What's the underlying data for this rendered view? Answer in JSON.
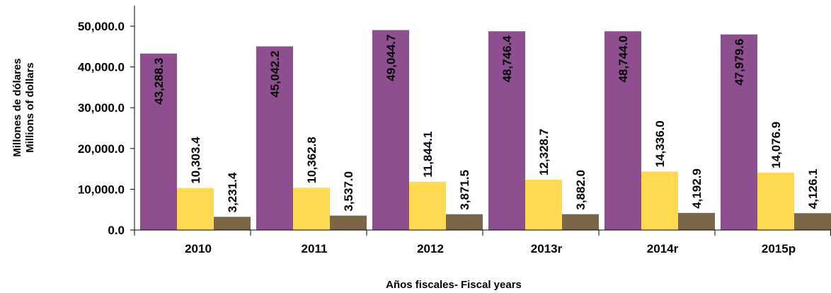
{
  "chart_data": {
    "type": "bar",
    "ylabel": [
      "Millones de dólares",
      "Millions of dollars"
    ],
    "xlabel": "Años fiscales- Fiscal years",
    "ylim": [
      0,
      55000
    ],
    "yticks": [
      "0.0",
      "10,000.0",
      "20,000.0",
      "30,000.0",
      "40,000.0",
      "50,000.0"
    ],
    "ytick_values": [
      0,
      10000,
      20000,
      30000,
      40000,
      50000
    ],
    "grid": false,
    "legend": "none",
    "categories": [
      "2010",
      "2011",
      "2012",
      "2013r",
      "2014r",
      "2015p"
    ],
    "series": [
      {
        "values": [
          43288.3,
          45042.2,
          49044.7,
          48746.4,
          48744.0,
          47979.6
        ],
        "labels": [
          "43,288.3",
          "45,042.2",
          "49,044.7",
          "48,746.4",
          "48,744.0",
          "47,979.6"
        ],
        "color": "#8e4f90"
      },
      {
        "values": [
          10303.4,
          10362.8,
          11844.1,
          12328.7,
          14336.0,
          14076.9
        ],
        "labels": [
          "10,303.4",
          "10,362.8",
          "11,844.1",
          "12,328.7",
          "14,336.0",
          "14,076.9"
        ],
        "color": "#ffd94f"
      },
      {
        "values": [
          3231.4,
          3537.0,
          3871.5,
          3882.0,
          4192.9,
          4126.1
        ],
        "labels": [
          "3,231.4",
          "3,537.0",
          "3,871.5",
          "3,882.0",
          "4,192.9",
          "4,126.1"
        ],
        "color": "#7b6645"
      }
    ]
  }
}
